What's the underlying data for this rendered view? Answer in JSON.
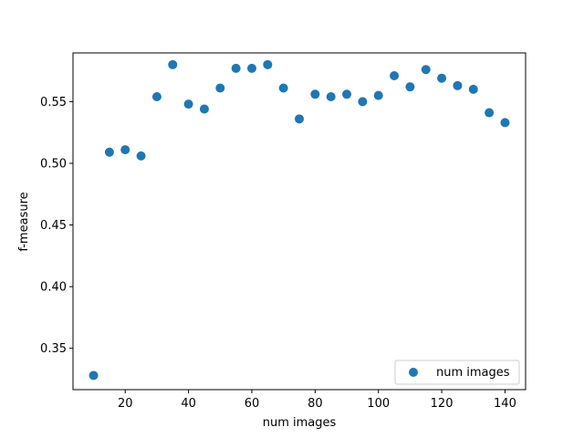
{
  "chart_data": {
    "type": "scatter",
    "title": "",
    "xlabel": "num images",
    "ylabel": "f-measure",
    "xlim": [
      3.5,
      146.5
    ],
    "ylim": [
      0.3165,
      0.5895
    ],
    "xticks": [
      20,
      40,
      60,
      80,
      100,
      120,
      140
    ],
    "yticks": [
      0.35,
      0.4,
      0.45,
      0.5,
      0.55
    ],
    "xtick_labels": [
      "20",
      "40",
      "60",
      "80",
      "100",
      "120",
      "140"
    ],
    "ytick_labels": [
      "0.35",
      "0.40",
      "0.45",
      "0.50",
      "0.55"
    ],
    "grid": false,
    "legend_position": "lower-right",
    "marker_color": "#1f77b4",
    "series": [
      {
        "name": "num images",
        "x": [
          10,
          15,
          20,
          25,
          30,
          35,
          40,
          45,
          50,
          55,
          60,
          65,
          70,
          75,
          80,
          85,
          90,
          95,
          100,
          105,
          110,
          115,
          120,
          125,
          130,
          135,
          140
        ],
        "y": [
          0.328,
          0.509,
          0.511,
          0.506,
          0.554,
          0.58,
          0.548,
          0.544,
          0.561,
          0.577,
          0.577,
          0.58,
          0.561,
          0.536,
          0.556,
          0.554,
          0.556,
          0.55,
          0.555,
          0.571,
          0.562,
          0.576,
          0.569,
          0.563,
          0.56,
          0.541,
          0.533
        ]
      }
    ]
  }
}
